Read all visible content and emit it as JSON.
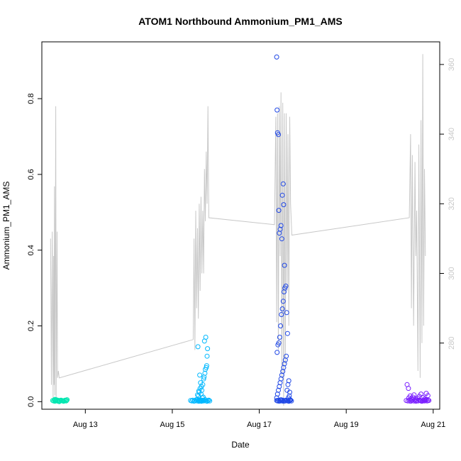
{
  "chart_data": {
    "type": "scatter",
    "title": "ATOM1 Northbound Ammonium_PM1_AMS",
    "xlabel": "Date",
    "ylabel": "Ammonium_PM1_AMS",
    "y2label": "",
    "x_ticks": [
      "Aug 13",
      "Aug 15",
      "Aug 17",
      "Aug 19",
      "Aug 21"
    ],
    "x_tick_values": [
      13,
      15,
      17,
      19,
      21
    ],
    "xlim": [
      12.0,
      21.15
    ],
    "ylim": [
      -0.02,
      0.95
    ],
    "y_ticks": [
      0.0,
      0.2,
      0.4,
      0.6,
      0.8
    ],
    "y_tick_labels": [
      "0.0",
      "0.2",
      "0.4",
      "0.6",
      "0.8"
    ],
    "y2lim": [
      261.0,
      366.5
    ],
    "y2_ticks": [
      280,
      300,
      320,
      340,
      360
    ],
    "y2_tick_labels": [
      "280",
      "300",
      "320",
      "340",
      "360"
    ],
    "line_color": "#c8c8c8",
    "line_series": {
      "name": "",
      "x": [
        12.2,
        12.22,
        12.24,
        12.26,
        12.27,
        12.28,
        12.29,
        12.3,
        12.32,
        12.33,
        12.35,
        12.36,
        12.38,
        12.4,
        15.48,
        15.5,
        15.52,
        15.54,
        15.56,
        15.58,
        15.6,
        15.62,
        15.64,
        15.66,
        15.68,
        15.7,
        15.72,
        15.74,
        15.76,
        15.78,
        15.8,
        15.82,
        15.84,
        17.35,
        17.38,
        17.4,
        17.42,
        17.44,
        17.46,
        17.48,
        17.5,
        17.52,
        17.54,
        17.56,
        17.58,
        17.6,
        17.62,
        17.64,
        17.66,
        17.68,
        17.7,
        17.72,
        17.75,
        20.45,
        20.48,
        20.5,
        20.52,
        20.55,
        20.58,
        20.6,
        20.62,
        20.65,
        20.67,
        20.7,
        20.72,
        20.74,
        20.76,
        20.78,
        20.8,
        20.82
      ],
      "y": [
        310,
        268,
        312,
        264,
        305,
        268,
        325,
        265,
        348,
        264,
        312,
        270,
        272,
        270,
        281,
        310,
        278,
        318,
        290,
        313,
        287,
        320,
        295,
        322,
        300,
        318,
        300,
        330,
        315,
        335,
        320,
        348,
        316,
        314,
        345,
        286,
        346,
        278,
        348,
        305,
        352,
        270,
        349,
        262,
        346,
        274,
        346,
        295,
        340,
        285,
        345,
        320,
        311,
        316,
        340,
        290,
        334,
        285,
        332,
        305,
        318,
        272,
        337,
        270,
        344,
        280,
        363,
        285,
        330,
        305
      ]
    },
    "scatter_clusters": [
      {
        "name": "",
        "color": "#00e6b0",
        "x": [
          12.25,
          12.27,
          12.29,
          12.3,
          12.32,
          12.33,
          12.35,
          12.36,
          12.38,
          12.4,
          12.42,
          12.44,
          12.46,
          12.48,
          12.5,
          12.52,
          12.54,
          12.56,
          12.57,
          12.58,
          12.3,
          12.4,
          12.5
        ],
        "y": [
          0.003,
          0.002,
          0.004,
          0.001,
          0.003,
          0.005,
          0.002,
          0.004,
          0.001,
          0.003,
          0.002,
          0.004,
          0.003,
          0.002,
          0.001,
          0.003,
          0.004,
          0.002,
          0.003,
          0.005,
          0.006,
          0.0,
          0.002
        ]
      },
      {
        "name": "",
        "color": "#00b8ff",
        "x": [
          15.42,
          15.45,
          15.47,
          15.5,
          15.52,
          15.55,
          15.57,
          15.58,
          15.6,
          15.61,
          15.62,
          15.63,
          15.64,
          15.65,
          15.66,
          15.67,
          15.68,
          15.7,
          15.72,
          15.74,
          15.76,
          15.78,
          15.8,
          15.82,
          15.84,
          15.86,
          15.6,
          15.62,
          15.64,
          15.66,
          15.68,
          15.7,
          15.72,
          15.73,
          15.75,
          15.76,
          15.78,
          15.79,
          15.8,
          15.81,
          15.63,
          15.65,
          15.67,
          15.69,
          15.71,
          15.74,
          15.77,
          15.59,
          15.61,
          15.58
        ],
        "y": [
          0.003,
          0.002,
          0.004,
          0.001,
          0.003,
          0.005,
          0.002,
          0.006,
          0.004,
          0.001,
          0.003,
          0.002,
          0.004,
          0.003,
          0.002,
          0.001,
          0.003,
          0.004,
          0.002,
          0.003,
          0.005,
          0.002,
          0.001,
          0.003,
          0.004,
          0.002,
          0.015,
          0.025,
          0.035,
          0.02,
          0.03,
          0.045,
          0.06,
          0.065,
          0.075,
          0.085,
          0.09,
          0.095,
          0.12,
          0.14,
          0.07,
          0.05,
          0.04,
          0.01,
          0.012,
          0.16,
          0.17,
          0.145,
          0.028,
          0.018
        ]
      },
      {
        "name": "",
        "color": "#1f47e6",
        "x": [
          17.4,
          17.42,
          17.44,
          17.46,
          17.48,
          17.5,
          17.52,
          17.54,
          17.56,
          17.58,
          17.6,
          17.62,
          17.64,
          17.66,
          17.68,
          17.7,
          17.72,
          17.74,
          17.4,
          17.42,
          17.44,
          17.46,
          17.48,
          17.5,
          17.52,
          17.54,
          17.56,
          17.58,
          17.6,
          17.62,
          17.64,
          17.66,
          17.68,
          17.7,
          17.41,
          17.43,
          17.45,
          17.47,
          17.49,
          17.51,
          17.53,
          17.55,
          17.57,
          17.59,
          17.61,
          17.63,
          17.65,
          17.67,
          17.69,
          17.71,
          17.4,
          17.41,
          17.42,
          17.44,
          17.45,
          17.46,
          17.48,
          17.5,
          17.52,
          17.53,
          17.55,
          17.56,
          17.58
        ],
        "y": [
          0.003,
          0.002,
          0.004,
          0.001,
          0.003,
          0.005,
          0.002,
          0.004,
          0.001,
          0.003,
          0.002,
          0.004,
          0.003,
          0.002,
          0.001,
          0.003,
          0.004,
          0.002,
          0.01,
          0.02,
          0.03,
          0.04,
          0.05,
          0.06,
          0.07,
          0.08,
          0.09,
          0.1,
          0.11,
          0.12,
          0.03,
          0.045,
          0.055,
          0.025,
          0.13,
          0.15,
          0.155,
          0.17,
          0.2,
          0.23,
          0.245,
          0.265,
          0.29,
          0.3,
          0.305,
          0.235,
          0.18,
          0.01,
          0.015,
          0.005,
          0.91,
          0.77,
          0.71,
          0.705,
          0.505,
          0.445,
          0.455,
          0.465,
          0.43,
          0.545,
          0.575,
          0.52,
          0.36
        ]
      },
      {
        "name": "",
        "color": "#7a1fff",
        "x": [
          20.38,
          20.42,
          20.45,
          20.48,
          20.5,
          20.52,
          20.55,
          20.58,
          20.6,
          20.62,
          20.65,
          20.68,
          20.7,
          20.72,
          20.74,
          20.76,
          20.78,
          20.8,
          20.82,
          20.84,
          20.86,
          20.88,
          20.9,
          20.44,
          20.47,
          20.5,
          20.53,
          20.56,
          20.6,
          20.64,
          20.68,
          20.72,
          20.76,
          20.8,
          20.84,
          20.88,
          20.4,
          20.43
        ],
        "y": [
          0.003,
          0.002,
          0.004,
          0.001,
          0.003,
          0.005,
          0.002,
          0.004,
          0.001,
          0.003,
          0.002,
          0.004,
          0.003,
          0.002,
          0.001,
          0.003,
          0.004,
          0.002,
          0.003,
          0.005,
          0.002,
          0.004,
          0.003,
          0.01,
          0.015,
          0.008,
          0.012,
          0.018,
          0.006,
          0.009,
          0.014,
          0.02,
          0.011,
          0.007,
          0.022,
          0.016,
          0.045,
          0.035
        ]
      }
    ],
    "grid": false,
    "legend": "none"
  }
}
